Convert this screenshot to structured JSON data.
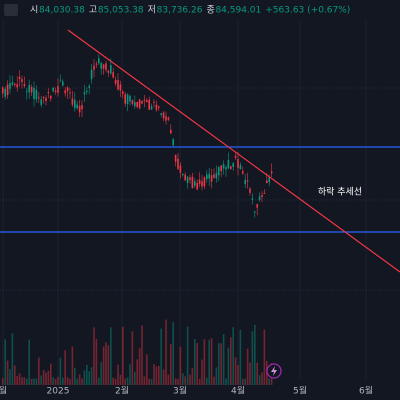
{
  "header": {
    "items": [
      {
        "label": "시",
        "value": "84,030.38"
      },
      {
        "label": "고",
        "value": "85,053.38"
      },
      {
        "label": "저",
        "value": "83,736.26"
      },
      {
        "label": "종",
        "value": "84,594.01"
      }
    ],
    "change": "+563.63 (+0.67%)"
  },
  "annotation": "하락 추세선",
  "x_axis": {
    "labels": [
      "월",
      "2025",
      "2월",
      "3월",
      "4월",
      "5월",
      "6월"
    ]
  }
}
